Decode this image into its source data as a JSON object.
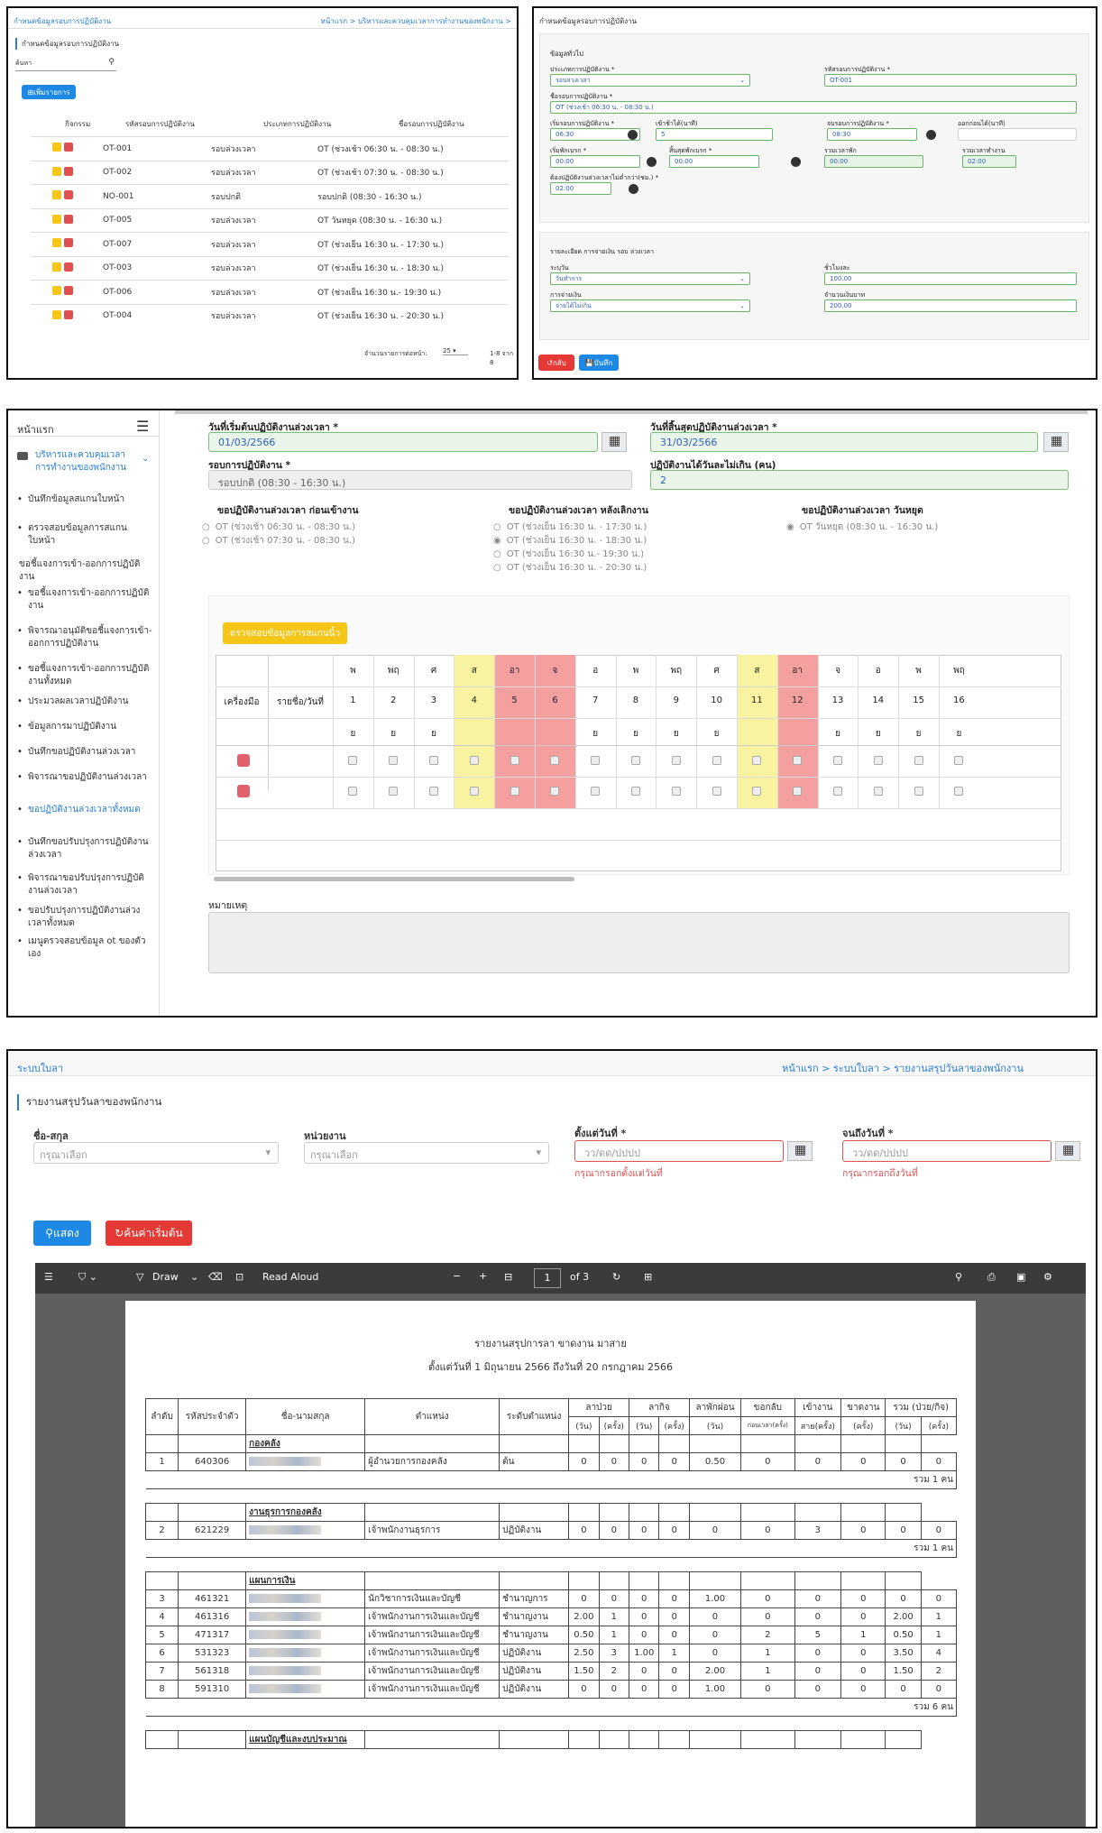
{
  "p1": {
    "title": "กำหนดข้อมูลรอบการปฏิบัติงาน",
    "breadcrumb": "หน้าแรก  >  บริหารและควบคุมเวลาการทำงานของพนักงาน  >",
    "section": "กำหนดข้อมูลรอบการปฏิบัติงาน",
    "search_label": "ค้นหา",
    "add_btn": "เพิ่มรายการ",
    "headers": [
      "กิจกรรม",
      "รหัสรอบการปฏิบัติงาน",
      "ประเภทการปฏิบัติงาน",
      "ชื่อรอบการปฏิบัติงาน"
    ],
    "rows": [
      [
        "OT-001",
        "รอบล่วงเวลา",
        "OT (ช่วงเช้า 06:30 น. - 08:30 น.)"
      ],
      [
        "OT-002",
        "รอบล่วงเวลา",
        "OT (ช่วงเช้า 07:30 น. - 08:30 น.)"
      ],
      [
        "NO-001",
        "รอบปกติ",
        "รอบปกติ (08:30 - 16:30 น.)"
      ],
      [
        "OT-005",
        "รอบล่วงเวลา",
        "OT วันหยุด (08:30 น. - 16:30 น.)"
      ],
      [
        "OT-007",
        "รอบล่วงเวลา",
        "OT (ช่วงเย็น 16:30 น. - 17:30 น.)"
      ],
      [
        "OT-003",
        "รอบล่วงเวลา",
        "OT (ช่วงเย็น 16:30 น. - 18:30 น.)"
      ],
      [
        "OT-006",
        "รอบล่วงเวลา",
        "OT (ช่วงเย็น 16:30 น.- 19:30 น.)"
      ],
      [
        "OT-004",
        "รอบล่วงเวลา",
        "OT (ช่วงเย็น 16:30 น. - 20:30 น.)"
      ]
    ],
    "per_page_label": "จำนวนรายการต่อหน้า:",
    "per_page": "25",
    "range": "1-8 จาก 8"
  },
  "p2": {
    "title": "กำหนดข้อมูลรอบการปฏิบัติงาน",
    "general": "ข้อมูลทั่วไป",
    "f_type_l": "ประเภทการปฏิบัติงาน *",
    "f_type": "รอบล่วงเวลา",
    "f_code_l": "รหัสรอบการปฏิบัติงาน *",
    "f_code": "OT-001",
    "f_name_l": "ชื่อรอบการปฏิบัติงาน *",
    "f_name": "OT (ช่วงเช้า 06:30 น. - 08:30 น.)",
    "f_start_l": "เริ่มรอบการปฏิบัติงาน *",
    "f_start": "06:30",
    "f_late_l": "เข้าช้าได้(นาที)",
    "f_late": "5",
    "f_end_l": "จบรอบการปฏิบัติงาน *",
    "f_end": "08:30",
    "f_early_l": "ออกก่อนได้(นาที)",
    "f_early": "",
    "f_bs_l": "เริ่มพักเบรก *",
    "f_bs": "00:00",
    "f_be_l": "สิ้นสุดพักเบรก *",
    "f_be": "00:00",
    "f_bt_l": "รวมเวลาพัก",
    "f_bt": "00:00",
    "f_wt_l": "รวมเวลาทำงาน",
    "f_wt": "02:00",
    "f_min_l": "ต้องปฏิบัติงานล่วงเวลาไม่ต่ำกว่า(ชม.) *",
    "f_min": "02:00",
    "pay_title": "รายละเอียด การจ่ายเงิน รอบ ล่วงเวลา",
    "f_day_l": "ระบุวัน",
    "f_day": "วันทำการ",
    "f_rate_l": "ชั่วโมงละ",
    "f_rate": "100.00",
    "f_pay_l": "การจ่ายเงิน",
    "f_pay": "จ่ายได้ไม่เกิน",
    "f_max_l": "จำนวนเงินบาท",
    "f_max": "200.00",
    "back": "กลับ",
    "save": "บันทึก"
  },
  "p3": {
    "home": "หน้าแรก",
    "menu_group": "บริหารและควบคุมเวลาการทำงานของพนักงาน",
    "items": [
      "บันทึกข้อมูลสแกนใบหน้า",
      "ตรวจสอบข้อมูลการสแกนใบหน้า",
      "ขอชี้แจงการเข้า-ออกการปฏิบัติงาน",
      "ขอชี้แจงการเข้า-ออกการปฏิบัติงาน",
      "พิจารณาอนุมัติขอชี้แจงการเข้า-ออกการปฏิบัติงาน",
      "ขอชี้แจงการเข้า-ออกการปฏิบัติงานทั้งหมด",
      "ประมวลผลเวลาปฏิบัติงาน",
      "ข้อมูลการมาปฏิบัติงาน",
      "บันทึกขอปฏิบัติงานล่วงเวลา",
      "พิจารณาขอปฏิบัติงานล่วงเวลา",
      "ขอปฏิบัติงานล่วงเวลาทั้งหมด",
      "บันทึกขอปรับปรุงการปฏิบัติงานล่วงเวลา",
      "พิจารณาขอปรับปรุงการปฏิบัติงานล่วงเวลา",
      "ขอปรับปรุงการปฏิบัติงานล่วงเวลาทั้งหมด",
      "เมนูตรวจสอบข้อมูล ot ของตัวเอง"
    ],
    "start_l": "วันที่เริ่มต้นปฏิบัติงานล่วงเวลา *",
    "start": "01/03/2566",
    "end_l": "วันที่สิ้นสุดปฏิบัติงานล่วงเวลา *",
    "end": "31/03/2566",
    "round_l": "รอบการปฏิบัติงาน *",
    "round": "รอบปกติ (08:30 - 16:30 น.)",
    "max_l": "ปฏิบัติงานได้วันละไม่เกิน (คน)",
    "max": "2",
    "g1": "ขอปฏิบัติงานล่วงเวลา ก่อนเข้างาน",
    "g1o": [
      "OT (ช่วงเช้า 06:30 น. - 08:30 น.)",
      "OT (ช่วงเช้า 07:30 น. - 08:30 น.)"
    ],
    "g2": "ขอปฏิบัติงานล่วงเวลา หลังเลิกงาน",
    "g2o": [
      "OT (ช่วงเย็น 16:30 น. - 17:30 น.)",
      "OT (ช่วงเย็น 16:30 น. - 18:30 น.)",
      "OT (ช่วงเย็น 16:30 น.- 19:30 น.)",
      "OT (ช่วงเย็น 16:30 น. - 20:30 น.)"
    ],
    "g3": "ขอปฏิบัติงานล่วงเวลา วันหยุด",
    "g3o": [
      "OT วันหยุด (08:30 น. - 16:30 น.)"
    ],
    "check_btn": "ตรวจสอบข้อมูลการสแกนนิ้ว",
    "tool_h": "เครื่องมือ",
    "name_h": "รายชื่อ/วันที่",
    "days": [
      "พ",
      "พฤ",
      "ศ",
      "ส",
      "อา",
      "จ",
      "อ",
      "พ",
      "พฤ",
      "ศ",
      "ส",
      "อา",
      "จ",
      "อ",
      "พ",
      "พฤ"
    ],
    "dates": [
      "1",
      "2",
      "3",
      "4",
      "5",
      "6",
      "7",
      "8",
      "9",
      "10",
      "11",
      "12",
      "13",
      "14",
      "15",
      "16"
    ],
    "marks": [
      "ย",
      "ย",
      "ย",
      "",
      "",
      "",
      "ย",
      "ย",
      "ย",
      "ย",
      "",
      "",
      "ย",
      "ย",
      "ย",
      "ย"
    ],
    "note_l": "หมายเหตุ"
  },
  "p4": {
    "app": "ระบบใบลา",
    "breadcrumb": "หน้าแรก  >  ระบบใบลา  >  รายงานสรุปวันลาของพนักงาน",
    "title": "รายงานสรุปวันลาของพนักงาน",
    "name_l": "ชื่อ-สกุล",
    "name_ph": "กรุณาเลือก",
    "dept_l": "หน่วยงาน",
    "dept_ph": "กรุณาเลือก",
    "from_l": "ตั้งแต่วันที่ *",
    "from_ph": "วว/ดด/ปปปป",
    "from_err": "กรุณากรอกตั้งแต่วันที่",
    "to_l": "จนถึงวันที่ *",
    "to_ph": "วว/ดด/ปปปป",
    "to_err": "กรุณากรอกถึงวันที่",
    "show": "แสดง",
    "reset": "ค้นค่าเริ่มต้น",
    "draw": "Draw",
    "read": "Read Aloud",
    "page": "1",
    "of": "of 3",
    "rep_title": "รายงานสรุปการลา ขาดงาน มาสาย",
    "rep_range": "ตั้งแต่วันที่  1 มิถุนายน 2566  ถึงวันที่  20 กรกฎาคม 2566",
    "h": [
      "ลำดับ",
      "รหัสประจำตัว",
      "ชื่อ-นามสกุล",
      "ตำแหน่ง",
      "ระดับตำแหน่ง",
      "ลาป่วย",
      "ลากิจ",
      "ลาพักผ่อน",
      "ขอกลับ",
      "เข้างาน",
      "ขาดงาน",
      "รวม (ป่วย/กิจ)"
    ],
    "sh": [
      "(วัน)",
      "(ครั้ง)",
      "(วัน)",
      "(ครั้ง)",
      "(วัน)",
      "ก่อนเวลา(ครั้ง)",
      "สาย(ครั้ง)",
      "(ครั้ง)",
      "(วัน)",
      "(ครั้ง)"
    ],
    "groups": [
      {
        "name": "กองคลัง",
        "rows": [
          [
            "1",
            "640306",
            "ผู้อำนวยการกองคลัง",
            "ต้น",
            "0",
            "0",
            "0",
            "0",
            "0.50",
            "0",
            "0",
            "0",
            "0",
            "0"
          ]
        ],
        "sum": "รวม 1 คน"
      },
      {
        "name": "งานธุรการกองคลัง",
        "rows": [
          [
            "2",
            "621229",
            "เจ้าพนักงานธุรการ",
            "ปฏิบัติงาน",
            "0",
            "0",
            "0",
            "0",
            "0",
            "0",
            "3",
            "0",
            "0",
            "0"
          ]
        ],
        "sum": "รวม 1 คน"
      },
      {
        "name": "แผนการเงิน",
        "rows": [
          [
            "3",
            "461321",
            "นักวิชาการเงินและบัญชี",
            "ชำนาญการ",
            "0",
            "0",
            "0",
            "0",
            "1.00",
            "0",
            "0",
            "0",
            "0",
            "0"
          ],
          [
            "4",
            "461316",
            "เจ้าพนักงานการเงินและบัญชี",
            "ชำนาญงาน",
            "2.00",
            "1",
            "0",
            "0",
            "0",
            "0",
            "0",
            "0",
            "2.00",
            "1"
          ],
          [
            "5",
            "471317",
            "เจ้าพนักงานการเงินและบัญชี",
            "ชำนาญงาน",
            "0.50",
            "1",
            "0",
            "0",
            "0",
            "2",
            "5",
            "1",
            "0.50",
            "1"
          ],
          [
            "6",
            "531323",
            "เจ้าพนักงานการเงินและบัญชี",
            "ปฏิบัติงาน",
            "2.50",
            "3",
            "1.00",
            "1",
            "0",
            "1",
            "0",
            "0",
            "3.50",
            "4"
          ],
          [
            "7",
            "561318",
            "เจ้าพนักงานการเงินและบัญชี",
            "ปฏิบัติงาน",
            "1.50",
            "2",
            "0",
            "0",
            "2.00",
            "1",
            "0",
            "0",
            "1.50",
            "2"
          ],
          [
            "8",
            "591310",
            "เจ้าพนักงานการเงินและบัญชี",
            "ปฏิบัติงาน",
            "0",
            "0",
            "0",
            "0",
            "1.00",
            "0",
            "0",
            "0",
            "0",
            "0"
          ]
        ],
        "sum": "รวม 6 คน"
      },
      {
        "name": "แผนบัญชีและงบประมาณ",
        "rows": [],
        "sum": ""
      }
    ]
  }
}
